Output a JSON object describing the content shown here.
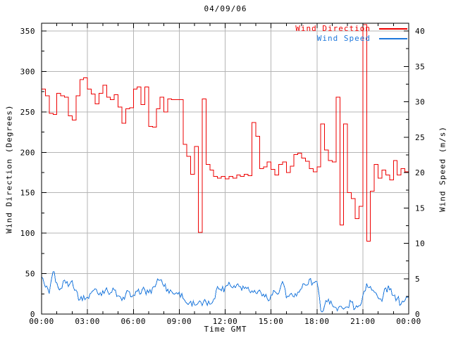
{
  "chart_data": {
    "type": "line",
    "title": "04/09/06",
    "xlabel": "Time GMT",
    "ylabel_left": "Wind Direction (Degrees)",
    "ylabel_right": "Wind Speed (m/s)",
    "grid": true,
    "legend_position": "top-right-inside",
    "x_axis": {
      "start_hour": 0,
      "end_hour": 24,
      "major_tick_hours": 3,
      "minor_tick_hours": 1,
      "tick_labels": [
        "00:00",
        "03:00",
        "06:00",
        "09:00",
        "12:00",
        "15:00",
        "18:00",
        "21:00",
        "00:00"
      ]
    },
    "y_left": {
      "min": 0,
      "max": 350,
      "tick_step": 50,
      "minor_step": 25,
      "tick_labels": [
        "0",
        "50",
        "100",
        "150",
        "200",
        "250",
        "300",
        "350"
      ]
    },
    "y_right": {
      "min": 0,
      "max": 40,
      "tick_step": 5,
      "minor_step": 2.5,
      "tick_labels": [
        "0",
        "5",
        "10",
        "15",
        "20",
        "25",
        "30",
        "35",
        "40"
      ]
    },
    "x_start_hour": 0,
    "x_step_hour": 0.25,
    "series": [
      {
        "name": "Wind Direction",
        "axis": "left",
        "color": "#ee0000",
        "style": "steps",
        "visual_noise": 0,
        "values": [
          278,
          270,
          248,
          247,
          273,
          270,
          268,
          245,
          240,
          270,
          290,
          292,
          278,
          272,
          260,
          273,
          283,
          268,
          265,
          271,
          256,
          236,
          254,
          255,
          278,
          281,
          259,
          281,
          232,
          231,
          254,
          268,
          250,
          266,
          265,
          265,
          265,
          210,
          195,
          173,
          207,
          101,
          266,
          185,
          178,
          170,
          168,
          170,
          167,
          170,
          168,
          172,
          170,
          173,
          171,
          237,
          220,
          180,
          182,
          188,
          179,
          172,
          185,
          188,
          175,
          183,
          197,
          199,
          193,
          189,
          180,
          176,
          182,
          235,
          203,
          190,
          188,
          268,
          110,
          235,
          150,
          143,
          118,
          133,
          358,
          90,
          152,
          185,
          168,
          178,
          172,
          166,
          190,
          172,
          180,
          176,
          203
        ]
      },
      {
        "name": "Wind Speed",
        "axis": "right",
        "color": "#1e78dc",
        "style": "line",
        "visual_noise": 0.55,
        "values": [
          5.2,
          3.8,
          2.9,
          6.0,
          4.4,
          3.6,
          4.8,
          3.9,
          4.7,
          3.4,
          2.0,
          2.6,
          2.4,
          3.0,
          3.6,
          2.7,
          3.3,
          3.7,
          3.0,
          3.4,
          2.6,
          1.9,
          2.8,
          3.1,
          2.7,
          3.2,
          2.9,
          3.4,
          3.0,
          3.7,
          4.3,
          4.8,
          3.9,
          3.5,
          3.2,
          2.9,
          3.1,
          2.2,
          1.5,
          1.8,
          1.3,
          1.6,
          1.2,
          1.7,
          1.4,
          2.1,
          3.9,
          3.3,
          3.8,
          4.5,
          3.7,
          4.1,
          3.9,
          3.6,
          3.8,
          3.3,
          3.0,
          3.4,
          2.8,
          2.2,
          2.7,
          3.2,
          2.9,
          4.6,
          2.3,
          2.8,
          2.4,
          3.1,
          3.6,
          4.1,
          4.9,
          4.4,
          4.6,
          0.5,
          1.2,
          2.1,
          1.3,
          0.9,
          1.1,
          0.7,
          1.0,
          1.7,
          0.8,
          1.2,
          2.6,
          4.3,
          3.9,
          3.1,
          2.3,
          1.8,
          3.7,
          3.4,
          2.6,
          2.2,
          1.4,
          1.9,
          2.4
        ]
      }
    ],
    "colors": {
      "frame": "#000000",
      "grid": "#b5b5b5",
      "background": "#ffffff",
      "wind_direction": "#ee0000",
      "wind_speed": "#1e78dc"
    }
  }
}
